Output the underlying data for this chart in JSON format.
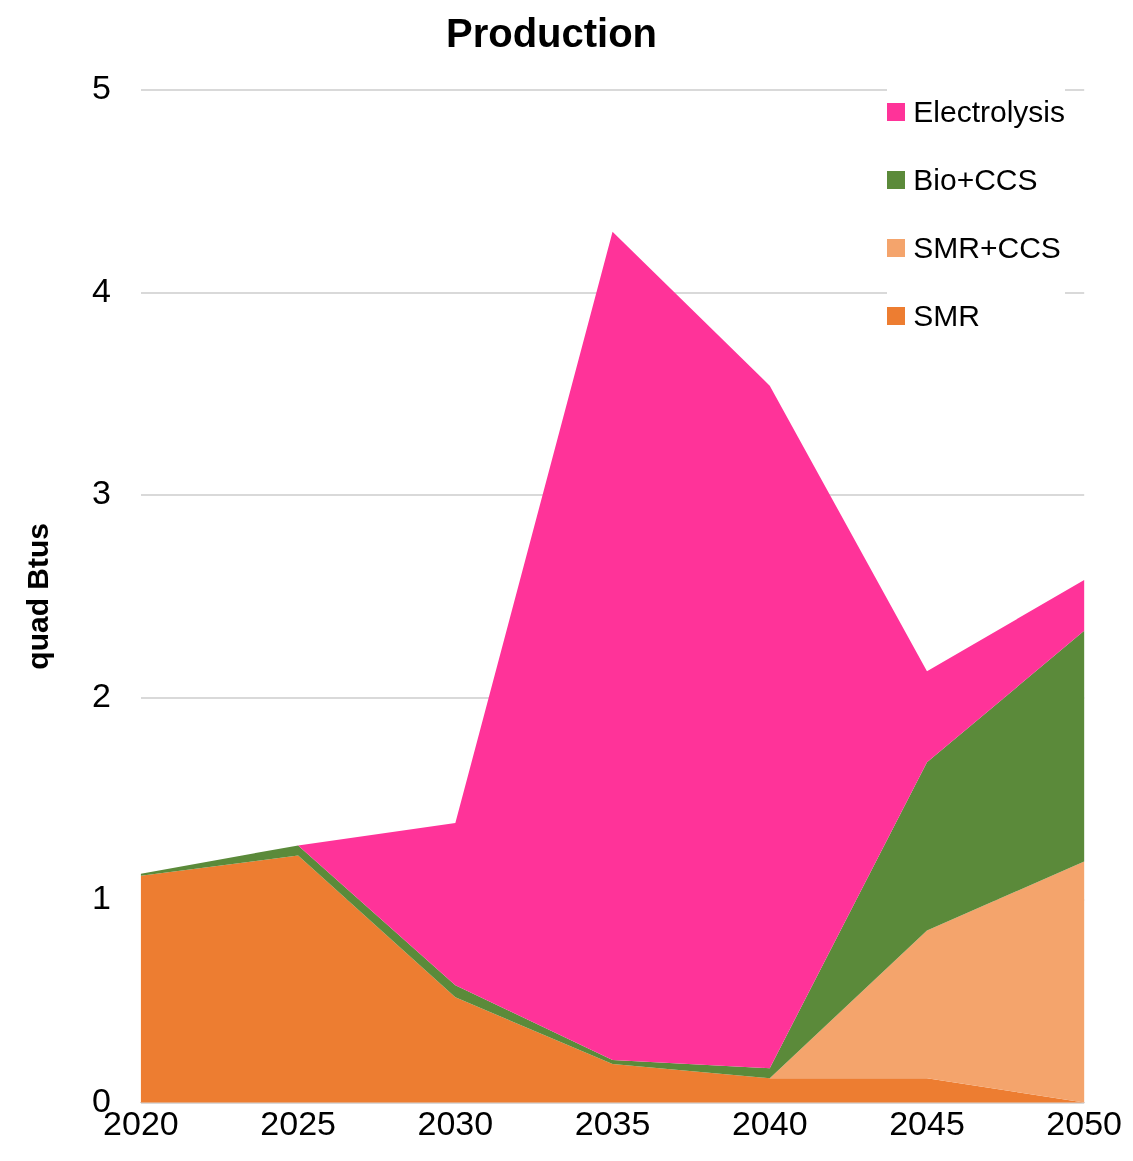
{
  "chart_data": {
    "type": "area",
    "title": "Production",
    "ylabel": "quad Btus",
    "stacked": true,
    "x": [
      2020,
      2025,
      2030,
      2035,
      2040,
      2045,
      2050
    ],
    "series": [
      {
        "name": "SMR",
        "color": "#ed7d31",
        "values": [
          1.12,
          1.22,
          0.52,
          0.19,
          0.12,
          0.12,
          0
        ]
      },
      {
        "name": "SMR+CCS",
        "color": "#f4a46c",
        "values": [
          null,
          null,
          null,
          null,
          0,
          0.73,
          1.19
        ]
      },
      {
        "name": "Bio+CCS",
        "color": "#5b8a3a",
        "values": [
          0.01,
          0.05,
          0.06,
          0.02,
          0.05,
          0.83,
          1.14
        ]
      },
      {
        "name": "Electrolysis",
        "color": "#ff3399",
        "values": [
          null,
          0,
          0.8,
          4.09,
          3.37,
          0.45,
          0.25
        ]
      }
    ],
    "xlim": [
      2020,
      2050
    ],
    "xticks": [
      2020,
      2025,
      2030,
      2035,
      2040,
      2045,
      2050
    ],
    "ylim": [
      0,
      5
    ],
    "yticks": [
      0,
      1,
      2,
      3,
      4,
      5
    ],
    "grid": "y",
    "legend": "top right"
  }
}
